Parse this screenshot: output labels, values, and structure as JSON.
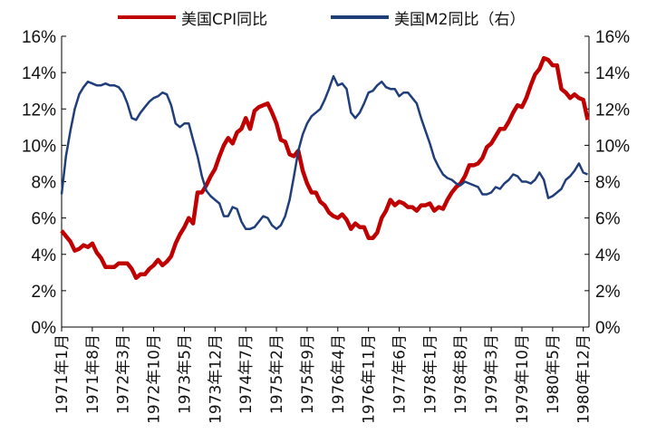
{
  "chart_data": {
    "type": "line",
    "title": "",
    "legend": {
      "placement": "top"
    },
    "x_tick_labels": [
      "1971年1月",
      "1971年8月",
      "1972年3月",
      "1972年10月",
      "1973年5月",
      "1973年12月",
      "1974年7月",
      "1975年2月",
      "1975年9月",
      "1976年4月",
      "1976年11月",
      "1977年6月",
      "1978年1月",
      "1978年8月",
      "1979年3月",
      "1979年10月",
      "1980年5月",
      "1980年12月"
    ],
    "x_range": [
      "1971-01",
      "1980-12"
    ],
    "y_left": {
      "range": [
        0,
        16
      ],
      "ticks": [
        "0%",
        "2%",
        "4%",
        "6%",
        "8%",
        "10%",
        "12%",
        "14%",
        "16%"
      ]
    },
    "y_right": {
      "range": [
        0,
        16
      ],
      "ticks": [
        "0%",
        "2%",
        "4%",
        "6%",
        "8%",
        "10%",
        "12%",
        "14%",
        "16%"
      ]
    },
    "grid": false,
    "series": [
      {
        "name": "美国CPI同比",
        "axis": "left",
        "color": "#c00000",
        "points": [
          [
            "1971-01",
            5.3
          ],
          [
            "1971-02",
            5.0
          ],
          [
            "1971-03",
            4.7
          ],
          [
            "1971-04",
            4.2
          ],
          [
            "1971-05",
            4.3
          ],
          [
            "1971-06",
            4.5
          ],
          [
            "1971-07",
            4.4
          ],
          [
            "1971-08",
            4.6
          ],
          [
            "1971-09",
            4.1
          ],
          [
            "1971-10",
            3.8
          ],
          [
            "1971-11",
            3.3
          ],
          [
            "1971-12",
            3.3
          ],
          [
            "1972-01",
            3.3
          ],
          [
            "1972-02",
            3.5
          ],
          [
            "1972-03",
            3.5
          ],
          [
            "1972-04",
            3.5
          ],
          [
            "1972-05",
            3.2
          ],
          [
            "1972-06",
            2.7
          ],
          [
            "1972-07",
            2.9
          ],
          [
            "1972-08",
            2.9
          ],
          [
            "1972-09",
            3.2
          ],
          [
            "1972-10",
            3.4
          ],
          [
            "1972-11",
            3.7
          ],
          [
            "1972-12",
            3.4
          ],
          [
            "1973-01",
            3.6
          ],
          [
            "1973-02",
            3.9
          ],
          [
            "1973-03",
            4.6
          ],
          [
            "1973-04",
            5.1
          ],
          [
            "1973-05",
            5.5
          ],
          [
            "1973-06",
            6.0
          ],
          [
            "1973-07",
            5.7
          ],
          [
            "1973-08",
            7.4
          ],
          [
            "1973-09",
            7.4
          ],
          [
            "1973-10",
            7.8
          ],
          [
            "1973-11",
            8.3
          ],
          [
            "1973-12",
            8.7
          ],
          [
            "1974-01",
            9.4
          ],
          [
            "1974-02",
            10.0
          ],
          [
            "1974-03",
            10.4
          ],
          [
            "1974-04",
            10.1
          ],
          [
            "1974-05",
            10.7
          ],
          [
            "1974-06",
            10.9
          ],
          [
            "1974-07",
            11.5
          ],
          [
            "1974-08",
            10.9
          ],
          [
            "1974-09",
            11.9
          ],
          [
            "1974-10",
            12.1
          ],
          [
            "1974-11",
            12.2
          ],
          [
            "1974-12",
            12.3
          ],
          [
            "1975-01",
            11.8
          ],
          [
            "1975-02",
            11.2
          ],
          [
            "1975-03",
            10.3
          ],
          [
            "1975-04",
            10.2
          ],
          [
            "1975-05",
            9.5
          ],
          [
            "1975-06",
            9.4
          ],
          [
            "1975-07",
            9.7
          ],
          [
            "1975-08",
            8.6
          ],
          [
            "1975-09",
            7.9
          ],
          [
            "1975-10",
            7.4
          ],
          [
            "1975-11",
            7.4
          ],
          [
            "1975-12",
            6.9
          ],
          [
            "1976-01",
            6.7
          ],
          [
            "1976-02",
            6.3
          ],
          [
            "1976-03",
            6.1
          ],
          [
            "1976-04",
            6.0
          ],
          [
            "1976-05",
            6.2
          ],
          [
            "1976-06",
            5.9
          ],
          [
            "1976-07",
            5.4
          ],
          [
            "1976-08",
            5.7
          ],
          [
            "1976-09",
            5.5
          ],
          [
            "1976-10",
            5.5
          ],
          [
            "1976-11",
            4.9
          ],
          [
            "1976-12",
            4.9
          ],
          [
            "1977-01",
            5.2
          ],
          [
            "1977-02",
            6.0
          ],
          [
            "1977-03",
            6.4
          ],
          [
            "1977-04",
            7.0
          ],
          [
            "1977-05",
            6.7
          ],
          [
            "1977-06",
            6.9
          ],
          [
            "1977-07",
            6.8
          ],
          [
            "1977-08",
            6.6
          ],
          [
            "1977-09",
            6.6
          ],
          [
            "1977-10",
            6.4
          ],
          [
            "1977-11",
            6.7
          ],
          [
            "1977-12",
            6.7
          ],
          [
            "1978-01",
            6.8
          ],
          [
            "1978-02",
            6.4
          ],
          [
            "1978-03",
            6.6
          ],
          [
            "1978-04",
            6.5
          ],
          [
            "1978-05",
            7.0
          ],
          [
            "1978-06",
            7.4
          ],
          [
            "1978-07",
            7.7
          ],
          [
            "1978-08",
            7.9
          ],
          [
            "1978-09",
            8.3
          ],
          [
            "1978-10",
            8.9
          ],
          [
            "1978-11",
            8.9
          ],
          [
            "1978-12",
            9.0
          ],
          [
            "1979-01",
            9.3
          ],
          [
            "1979-02",
            9.9
          ],
          [
            "1979-03",
            10.1
          ],
          [
            "1979-04",
            10.5
          ],
          [
            "1979-05",
            10.9
          ],
          [
            "1979-06",
            10.9
          ],
          [
            "1979-07",
            11.3
          ],
          [
            "1979-08",
            11.8
          ],
          [
            "1979-09",
            12.2
          ],
          [
            "1979-10",
            12.1
          ],
          [
            "1979-11",
            12.6
          ],
          [
            "1979-12",
            13.3
          ],
          [
            "1980-01",
            13.9
          ],
          [
            "1980-02",
            14.2
          ],
          [
            "1980-03",
            14.8
          ],
          [
            "1980-04",
            14.7
          ],
          [
            "1980-05",
            14.4
          ],
          [
            "1980-06",
            14.4
          ],
          [
            "1980-07",
            13.1
          ],
          [
            "1980-08",
            12.9
          ],
          [
            "1980-09",
            12.6
          ],
          [
            "1980-10",
            12.8
          ],
          [
            "1980-11",
            12.6
          ],
          [
            "1980-12",
            12.5
          ],
          [
            "1981-01",
            11.4
          ]
        ]
      },
      {
        "name": "美国M2同比（右）",
        "axis": "right",
        "color": "#1f3e7a",
        "points": [
          [
            "1971-01",
            7.3
          ],
          [
            "1971-02",
            9.4
          ],
          [
            "1971-03",
            10.8
          ],
          [
            "1971-04",
            12.0
          ],
          [
            "1971-05",
            12.8
          ],
          [
            "1971-06",
            13.2
          ],
          [
            "1971-07",
            13.5
          ],
          [
            "1971-08",
            13.4
          ],
          [
            "1971-09",
            13.3
          ],
          [
            "1971-10",
            13.3
          ],
          [
            "1971-11",
            13.4
          ],
          [
            "1971-12",
            13.3
          ],
          [
            "1972-01",
            13.3
          ],
          [
            "1972-02",
            13.2
          ],
          [
            "1972-03",
            12.9
          ],
          [
            "1972-04",
            12.3
          ],
          [
            "1972-05",
            11.5
          ],
          [
            "1972-06",
            11.4
          ],
          [
            "1972-07",
            11.8
          ],
          [
            "1972-08",
            12.1
          ],
          [
            "1972-09",
            12.4
          ],
          [
            "1972-10",
            12.6
          ],
          [
            "1972-11",
            12.7
          ],
          [
            "1972-12",
            12.9
          ],
          [
            "1973-01",
            12.8
          ],
          [
            "1973-02",
            12.2
          ],
          [
            "1973-03",
            11.2
          ],
          [
            "1973-04",
            11.0
          ],
          [
            "1973-05",
            11.2
          ],
          [
            "1973-06",
            11.2
          ],
          [
            "1973-07",
            10.3
          ],
          [
            "1973-08",
            9.4
          ],
          [
            "1973-09",
            8.3
          ],
          [
            "1973-10",
            7.5
          ],
          [
            "1973-11",
            7.2
          ],
          [
            "1973-12",
            7.0
          ],
          [
            "1974-01",
            6.8
          ],
          [
            "1974-02",
            6.1
          ],
          [
            "1974-03",
            6.1
          ],
          [
            "1974-04",
            6.6
          ],
          [
            "1974-05",
            6.5
          ],
          [
            "1974-06",
            5.8
          ],
          [
            "1974-07",
            5.4
          ],
          [
            "1974-08",
            5.4
          ],
          [
            "1974-09",
            5.5
          ],
          [
            "1974-10",
            5.8
          ],
          [
            "1974-11",
            6.1
          ],
          [
            "1974-12",
            6.0
          ],
          [
            "1975-01",
            5.6
          ],
          [
            "1975-02",
            5.4
          ],
          [
            "1975-03",
            5.6
          ],
          [
            "1975-04",
            6.1
          ],
          [
            "1975-05",
            7.0
          ],
          [
            "1975-06",
            8.3
          ],
          [
            "1975-07",
            9.7
          ],
          [
            "1975-08",
            10.6
          ],
          [
            "1975-09",
            11.2
          ],
          [
            "1975-10",
            11.6
          ],
          [
            "1975-11",
            11.8
          ],
          [
            "1975-12",
            12.0
          ],
          [
            "1976-01",
            12.5
          ],
          [
            "1976-02",
            13.1
          ],
          [
            "1976-03",
            13.8
          ],
          [
            "1976-04",
            13.3
          ],
          [
            "1976-05",
            13.4
          ],
          [
            "1976-06",
            13.1
          ],
          [
            "1976-07",
            11.8
          ],
          [
            "1976-08",
            11.5
          ],
          [
            "1976-09",
            11.8
          ],
          [
            "1976-10",
            12.3
          ],
          [
            "1976-11",
            12.9
          ],
          [
            "1976-12",
            13.0
          ],
          [
            "1977-01",
            13.3
          ],
          [
            "1977-02",
            13.5
          ],
          [
            "1977-03",
            13.2
          ],
          [
            "1977-04",
            13.1
          ],
          [
            "1977-05",
            13.1
          ],
          [
            "1977-06",
            12.7
          ],
          [
            "1977-07",
            12.9
          ],
          [
            "1977-08",
            12.9
          ],
          [
            "1977-09",
            12.6
          ],
          [
            "1977-10",
            12.3
          ],
          [
            "1977-11",
            11.5
          ],
          [
            "1977-12",
            10.8
          ],
          [
            "1978-01",
            10.1
          ],
          [
            "1978-02",
            9.3
          ],
          [
            "1978-03",
            8.8
          ],
          [
            "1978-04",
            8.4
          ],
          [
            "1978-05",
            8.2
          ],
          [
            "1978-06",
            8.1
          ],
          [
            "1978-07",
            7.9
          ],
          [
            "1978-08",
            7.8
          ],
          [
            "1978-09",
            8.0
          ],
          [
            "1978-10",
            7.9
          ],
          [
            "1978-11",
            7.8
          ],
          [
            "1978-12",
            7.7
          ],
          [
            "1979-01",
            7.3
          ],
          [
            "1979-02",
            7.3
          ],
          [
            "1979-03",
            7.4
          ],
          [
            "1979-04",
            7.7
          ],
          [
            "1979-05",
            7.6
          ],
          [
            "1979-06",
            7.9
          ],
          [
            "1979-07",
            8.1
          ],
          [
            "1979-08",
            8.4
          ],
          [
            "1979-09",
            8.3
          ],
          [
            "1979-10",
            8.0
          ],
          [
            "1979-11",
            8.0
          ],
          [
            "1979-12",
            7.9
          ],
          [
            "1980-01",
            8.1
          ],
          [
            "1980-02",
            8.5
          ],
          [
            "1980-03",
            8.1
          ],
          [
            "1980-04",
            7.1
          ],
          [
            "1980-05",
            7.2
          ],
          [
            "1980-06",
            7.4
          ],
          [
            "1980-07",
            7.6
          ],
          [
            "1980-08",
            8.1
          ],
          [
            "1980-09",
            8.3
          ],
          [
            "1980-10",
            8.6
          ],
          [
            "1980-11",
            9.0
          ],
          [
            "1980-12",
            8.5
          ],
          [
            "1981-01",
            8.4
          ]
        ]
      }
    ]
  }
}
